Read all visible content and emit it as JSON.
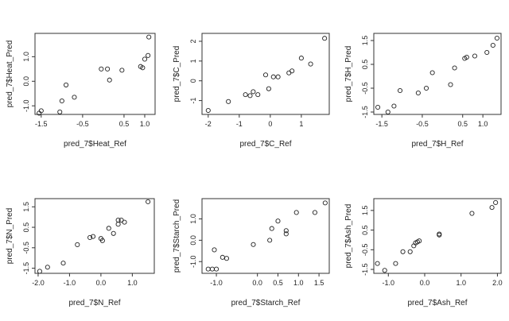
{
  "chart_data": [
    {
      "type": "scatter",
      "xlabel": "pred_7$Heat_Ref",
      "ylabel": "pred_7$Heat_Pred",
      "xticks": [
        "-1.5",
        "-0.5",
        "0.5",
        "1.0"
      ],
      "xtick_values": [
        -1.5,
        -0.5,
        0.5,
        1.0
      ],
      "yticks": [
        "-1.0",
        "0.0",
        "1.0"
      ],
      "ytick_values": [
        -1.0,
        0.0,
        1.0
      ],
      "xlim": [
        -1.65,
        1.25
      ],
      "ylim": [
        -1.35,
        1.95
      ],
      "points": [
        {
          "x": -1.55,
          "y": -1.3
        },
        {
          "x": -1.5,
          "y": -1.2
        },
        {
          "x": -1.05,
          "y": -1.25
        },
        {
          "x": -1.0,
          "y": -0.8
        },
        {
          "x": -0.9,
          "y": -0.15
        },
        {
          "x": -0.7,
          "y": -0.65
        },
        {
          "x": -0.05,
          "y": 0.5
        },
        {
          "x": 0.1,
          "y": 0.5
        },
        {
          "x": 0.15,
          "y": 0.05
        },
        {
          "x": 0.45,
          "y": 0.45
        },
        {
          "x": 0.9,
          "y": 0.6
        },
        {
          "x": 0.95,
          "y": 0.55
        },
        {
          "x": 1.0,
          "y": 0.9
        },
        {
          "x": 1.08,
          "y": 1.05
        },
        {
          "x": 1.1,
          "y": 1.8
        }
      ]
    },
    {
      "type": "scatter",
      "xlabel": "pred_7$C_Ref",
      "ylabel": "pred_7$C_Pred",
      "xticks": [
        "-2",
        "-1",
        "0",
        "1"
      ],
      "xtick_values": [
        -2,
        -1,
        0,
        1
      ],
      "yticks": [
        "-1",
        "0",
        "1",
        "2"
      ],
      "ytick_values": [
        -1,
        0,
        1,
        2
      ],
      "xlim": [
        -2.2,
        1.9
      ],
      "ylim": [
        -1.7,
        2.4
      ],
      "points": [
        {
          "x": -2.0,
          "y": -1.5
        },
        {
          "x": -1.35,
          "y": -1.05
        },
        {
          "x": -0.8,
          "y": -0.7
        },
        {
          "x": -0.65,
          "y": -0.75
        },
        {
          "x": -0.55,
          "y": -0.55
        },
        {
          "x": -0.4,
          "y": -0.7
        },
        {
          "x": -0.15,
          "y": 0.3
        },
        {
          "x": -0.05,
          "y": -0.4
        },
        {
          "x": 0.1,
          "y": 0.2
        },
        {
          "x": 0.25,
          "y": 0.2
        },
        {
          "x": 0.6,
          "y": 0.4
        },
        {
          "x": 0.7,
          "y": 0.5
        },
        {
          "x": 1.0,
          "y": 1.15
        },
        {
          "x": 1.3,
          "y": 0.85
        },
        {
          "x": 1.75,
          "y": 2.15
        }
      ]
    },
    {
      "type": "scatter",
      "xlabel": "pred_7$H_Ref",
      "ylabel": "pred_7$H_Pred",
      "xticks": [
        "-1.5",
        "-0.5",
        "0.5",
        "1.0"
      ],
      "xtick_values": [
        -1.5,
        -0.5,
        0.5,
        1.0
      ],
      "yticks": [
        "-1.5",
        "-0.5",
        "0.5",
        "1.5"
      ],
      "ytick_values": [
        -1.5,
        -0.5,
        0.5,
        1.5
      ],
      "xlim": [
        -1.7,
        1.45
      ],
      "ylim": [
        -1.6,
        1.8
      ],
      "points": [
        {
          "x": -1.6,
          "y": -1.3
        },
        {
          "x": -1.35,
          "y": -1.5
        },
        {
          "x": -1.2,
          "y": -1.25
        },
        {
          "x": -1.05,
          "y": -0.6
        },
        {
          "x": -0.6,
          "y": -0.7
        },
        {
          "x": -0.4,
          "y": -0.5
        },
        {
          "x": -0.25,
          "y": 0.15
        },
        {
          "x": 0.2,
          "y": -0.35
        },
        {
          "x": 0.3,
          "y": 0.35
        },
        {
          "x": 0.55,
          "y": 0.75
        },
        {
          "x": 0.6,
          "y": 0.8
        },
        {
          "x": 0.8,
          "y": 0.85
        },
        {
          "x": 1.1,
          "y": 1.0
        },
        {
          "x": 1.25,
          "y": 1.3
        },
        {
          "x": 1.35,
          "y": 1.6
        }
      ]
    },
    {
      "type": "scatter",
      "xlabel": "pred_7$N_Ref",
      "ylabel": "pred_7$N_Pred",
      "xticks": [
        "-2.0",
        "-1.0",
        "0.0",
        "1.0"
      ],
      "xtick_values": [
        -2.0,
        -1.0,
        0.0,
        1.0
      ],
      "yticks": [
        "-1.5",
        "-0.5",
        "0.5",
        "1.5"
      ],
      "ytick_values": [
        -1.5,
        -0.5,
        0.5,
        1.5
      ],
      "xlim": [
        -2.1,
        1.7
      ],
      "ylim": [
        -1.75,
        1.9
      ],
      "points": [
        {
          "x": -1.95,
          "y": -1.65
        },
        {
          "x": -1.7,
          "y": -1.45
        },
        {
          "x": -1.2,
          "y": -1.25
        },
        {
          "x": -0.75,
          "y": -0.35
        },
        {
          "x": -0.35,
          "y": 0.0
        },
        {
          "x": -0.25,
          "y": 0.05
        },
        {
          "x": 0.0,
          "y": -0.05
        },
        {
          "x": 0.05,
          "y": -0.15
        },
        {
          "x": 0.25,
          "y": 0.45
        },
        {
          "x": 0.4,
          "y": 0.2
        },
        {
          "x": 0.55,
          "y": 0.65
        },
        {
          "x": 0.55,
          "y": 0.85
        },
        {
          "x": 0.65,
          "y": 0.85
        },
        {
          "x": 0.75,
          "y": 0.75
        },
        {
          "x": 1.5,
          "y": 1.75
        }
      ]
    },
    {
      "type": "scatter",
      "xlabel": "pred_7$Starch_Ref",
      "ylabel": "pred_7$Starch_Pred",
      "xticks": [
        "-1.0",
        "0.0",
        "0.5",
        "1.0",
        "1.5"
      ],
      "xtick_values": [
        -1.0,
        0.0,
        0.5,
        1.0,
        1.5
      ],
      "yticks": [
        "-1.0",
        "0.0",
        "1.0"
      ],
      "ytick_values": [
        -1.0,
        0.0,
        1.0
      ],
      "xlim": [
        -1.35,
        1.75
      ],
      "ylim": [
        -1.55,
        1.95
      ],
      "points": [
        {
          "x": -1.2,
          "y": -1.35
        },
        {
          "x": -1.1,
          "y": -1.35
        },
        {
          "x": -1.0,
          "y": -1.35
        },
        {
          "x": -1.05,
          "y": -0.45
        },
        {
          "x": -0.85,
          "y": -0.8
        },
        {
          "x": -0.75,
          "y": -0.85
        },
        {
          "x": -0.1,
          "y": -0.2
        },
        {
          "x": 0.3,
          "y": 0.0
        },
        {
          "x": 0.35,
          "y": 0.55
        },
        {
          "x": 0.5,
          "y": 0.9
        },
        {
          "x": 0.7,
          "y": 0.3
        },
        {
          "x": 0.7,
          "y": 0.45
        },
        {
          "x": 0.95,
          "y": 1.3
        },
        {
          "x": 1.4,
          "y": 1.3
        },
        {
          "x": 1.65,
          "y": 1.75
        }
      ]
    },
    {
      "type": "scatter",
      "xlabel": "pred_7$Ash_Ref",
      "ylabel": "pred_7$Ash_Pred",
      "xticks": [
        "-1.0",
        "0.0",
        "1.0",
        "2.0"
      ],
      "xtick_values": [
        -1.0,
        0.0,
        1.0,
        2.0
      ],
      "yticks": [
        "-1.5",
        "-0.5",
        "0.5",
        "1.5"
      ],
      "ytick_values": [
        -1.5,
        -0.5,
        0.5,
        1.5
      ],
      "xlim": [
        -1.4,
        2.1
      ],
      "ylim": [
        -1.7,
        2.1
      ],
      "points": [
        {
          "x": -1.3,
          "y": -1.2
        },
        {
          "x": -1.1,
          "y": -1.55
        },
        {
          "x": -0.8,
          "y": -1.2
        },
        {
          "x": -0.6,
          "y": -0.6
        },
        {
          "x": -0.4,
          "y": -0.6
        },
        {
          "x": -0.3,
          "y": -0.3
        },
        {
          "x": -0.25,
          "y": -0.15
        },
        {
          "x": -0.2,
          "y": -0.1
        },
        {
          "x": -0.15,
          "y": -0.05
        },
        {
          "x": 0.4,
          "y": 0.25
        },
        {
          "x": 0.4,
          "y": 0.3
        },
        {
          "x": 1.3,
          "y": 1.35
        },
        {
          "x": 1.85,
          "y": 1.65
        },
        {
          "x": 1.95,
          "y": 1.9
        }
      ]
    }
  ]
}
